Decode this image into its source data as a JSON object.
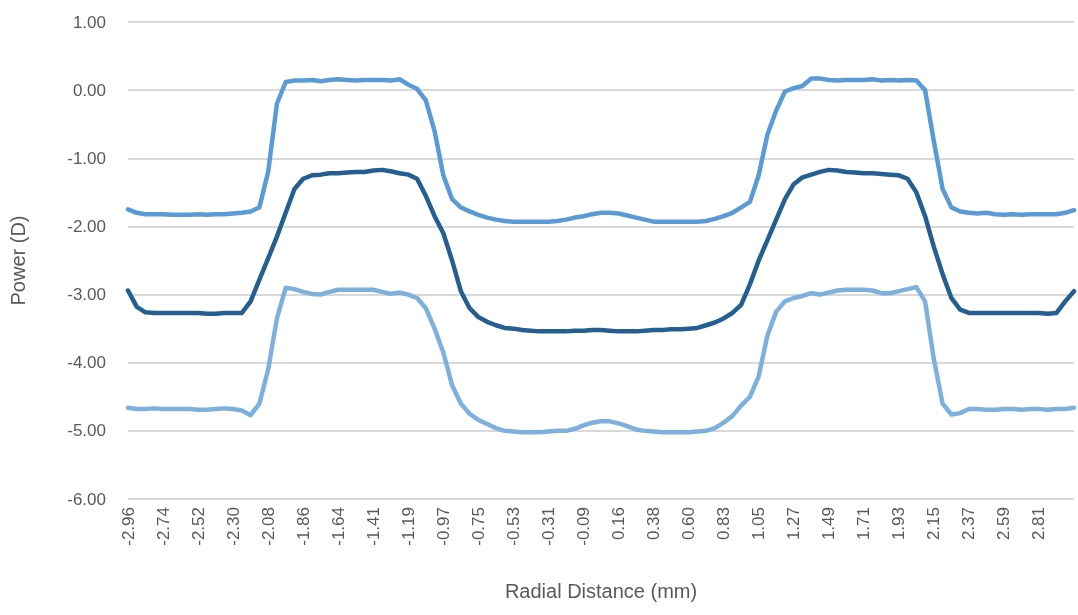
{
  "chart_data": {
    "type": "line",
    "xlabel": "Radial Distance (mm)",
    "ylabel": "Power (D)",
    "categories": [
      "-2.96",
      null,
      null,
      null,
      "-2.74",
      null,
      null,
      null,
      "-2.52",
      null,
      null,
      null,
      "-2.30",
      null,
      null,
      null,
      "-2.08",
      null,
      null,
      null,
      "-1.86",
      null,
      null,
      null,
      "-1.64",
      null,
      null,
      null,
      "-1.41",
      null,
      null,
      null,
      "-1.19",
      null,
      null,
      null,
      "-0.97",
      null,
      null,
      null,
      "-0.75",
      null,
      null,
      null,
      "-0.53",
      null,
      null,
      null,
      "-0.31",
      null,
      null,
      null,
      "-0.09",
      null,
      null,
      null,
      "0.16",
      null,
      null,
      null,
      "0.38",
      null,
      null,
      null,
      "0.60",
      null,
      null,
      null,
      "0.83",
      null,
      null,
      null,
      "1.05",
      null,
      null,
      null,
      "1.27",
      null,
      null,
      null,
      "1.49",
      null,
      null,
      null,
      "1.71",
      null,
      null,
      null,
      "1.93",
      null,
      null,
      null,
      "2.15",
      null,
      null,
      null,
      "2.37",
      null,
      null,
      null,
      "2.59",
      null,
      null,
      null,
      "2.81",
      null,
      null,
      null,
      null
    ],
    "series": [
      {
        "color": "#5b9bd5",
        "values": [
          -1.75,
          -1.8,
          -1.82,
          -1.82,
          -1.82,
          -1.83,
          -1.83,
          -1.83,
          -1.82,
          -1.83,
          -1.82,
          -1.82,
          -1.81,
          -1.8,
          -1.78,
          -1.72,
          -1.2,
          -0.2,
          0.12,
          0.14,
          0.14,
          0.15,
          0.13,
          0.15,
          0.16,
          0.15,
          0.14,
          0.15,
          0.15,
          0.15,
          0.14,
          0.16,
          0.08,
          0.02,
          -0.15,
          -0.6,
          -1.25,
          -1.6,
          -1.72,
          -1.78,
          -1.83,
          -1.87,
          -1.9,
          -1.92,
          -1.93,
          -1.93,
          -1.93,
          -1.93,
          -1.93,
          -1.92,
          -1.9,
          -1.87,
          -1.85,
          -1.82,
          -1.8,
          -1.8,
          -1.81,
          -1.84,
          -1.87,
          -1.9,
          -1.93,
          -1.93,
          -1.93,
          -1.93,
          -1.93,
          -1.93,
          -1.92,
          -1.89,
          -1.85,
          -1.8,
          -1.72,
          -1.64,
          -1.25,
          -0.65,
          -0.3,
          -0.02,
          0.03,
          0.06,
          0.17,
          0.17,
          0.15,
          0.14,
          0.15,
          0.15,
          0.15,
          0.16,
          0.14,
          0.15,
          0.14,
          0.15,
          0.14,
          0.0,
          -0.75,
          -1.45,
          -1.72,
          -1.78,
          -1.8,
          -1.81,
          -1.8,
          -1.82,
          -1.83,
          -1.82,
          -1.83,
          -1.82,
          -1.82,
          -1.82,
          -1.82,
          -1.8,
          -1.76
        ]
      },
      {
        "color": "#255e91",
        "values": [
          -2.94,
          -3.18,
          -3.26,
          -3.27,
          -3.27,
          -3.27,
          -3.27,
          -3.27,
          -3.27,
          -3.28,
          -3.28,
          -3.27,
          -3.27,
          -3.27,
          -3.1,
          -2.78,
          -2.47,
          -2.15,
          -1.8,
          -1.45,
          -1.3,
          -1.25,
          -1.24,
          -1.22,
          -1.22,
          -1.21,
          -1.2,
          -1.2,
          -1.18,
          -1.17,
          -1.19,
          -1.22,
          -1.24,
          -1.3,
          -1.55,
          -1.85,
          -2.1,
          -2.5,
          -2.95,
          -3.2,
          -3.33,
          -3.4,
          -3.45,
          -3.49,
          -3.5,
          -3.52,
          -3.53,
          -3.54,
          -3.54,
          -3.54,
          -3.54,
          -3.53,
          -3.53,
          -3.52,
          -3.52,
          -3.53,
          -3.54,
          -3.54,
          -3.54,
          -3.53,
          -3.52,
          -3.52,
          -3.51,
          -3.51,
          -3.5,
          -3.49,
          -3.45,
          -3.41,
          -3.35,
          -3.27,
          -3.15,
          -2.85,
          -2.5,
          -2.2,
          -1.9,
          -1.6,
          -1.38,
          -1.28,
          -1.24,
          -1.2,
          -1.17,
          -1.18,
          -1.2,
          -1.21,
          -1.22,
          -1.22,
          -1.23,
          -1.24,
          -1.25,
          -1.3,
          -1.5,
          -1.85,
          -2.3,
          -2.7,
          -3.05,
          -3.22,
          -3.27,
          -3.27,
          -3.27,
          -3.27,
          -3.27,
          -3.27,
          -3.27,
          -3.27,
          -3.27,
          -3.28,
          -3.27,
          -3.1,
          -2.95
        ]
      },
      {
        "color": "#7eb0de",
        "values": [
          -4.66,
          -4.68,
          -4.68,
          -4.67,
          -4.68,
          -4.68,
          -4.68,
          -4.68,
          -4.69,
          -4.69,
          -4.68,
          -4.67,
          -4.68,
          -4.7,
          -4.77,
          -4.6,
          -4.1,
          -3.35,
          -2.9,
          -2.92,
          -2.96,
          -2.99,
          -3.0,
          -2.96,
          -2.93,
          -2.93,
          -2.93,
          -2.93,
          -2.93,
          -2.96,
          -2.99,
          -2.97,
          -3.0,
          -3.05,
          -3.2,
          -3.5,
          -3.85,
          -4.33,
          -4.6,
          -4.75,
          -4.84,
          -4.9,
          -4.96,
          -5.0,
          -5.01,
          -5.02,
          -5.02,
          -5.02,
          -5.01,
          -5.0,
          -5.0,
          -4.97,
          -4.92,
          -4.88,
          -4.86,
          -4.86,
          -4.89,
          -4.93,
          -4.98,
          -5.0,
          -5.01,
          -5.02,
          -5.02,
          -5.02,
          -5.02,
          -5.01,
          -5.0,
          -4.96,
          -4.88,
          -4.78,
          -4.63,
          -4.5,
          -4.2,
          -3.6,
          -3.25,
          -3.1,
          -3.05,
          -3.02,
          -2.98,
          -3.0,
          -2.97,
          -2.94,
          -2.93,
          -2.93,
          -2.93,
          -2.94,
          -2.98,
          -2.98,
          -2.95,
          -2.92,
          -2.89,
          -3.1,
          -3.95,
          -4.6,
          -4.76,
          -4.74,
          -4.68,
          -4.68,
          -4.69,
          -4.69,
          -4.68,
          -4.68,
          -4.69,
          -4.68,
          -4.68,
          -4.69,
          -4.68,
          -4.68,
          -4.66
        ]
      }
    ],
    "ylim": [
      -6,
      1
    ],
    "yticks": [
      {
        "value": 1,
        "label": "1.00"
      },
      {
        "value": 0,
        "label": "0.00"
      },
      {
        "value": -1,
        "label": "-1.00"
      },
      {
        "value": -2,
        "label": "-2.00"
      },
      {
        "value": -3,
        "label": "-3.00"
      },
      {
        "value": -4,
        "label": "-4.00"
      },
      {
        "value": -5,
        "label": "-5.00"
      },
      {
        "value": -6,
        "label": "-6.00"
      }
    ],
    "grid": "y",
    "marker": "none",
    "line_style": "solid"
  }
}
